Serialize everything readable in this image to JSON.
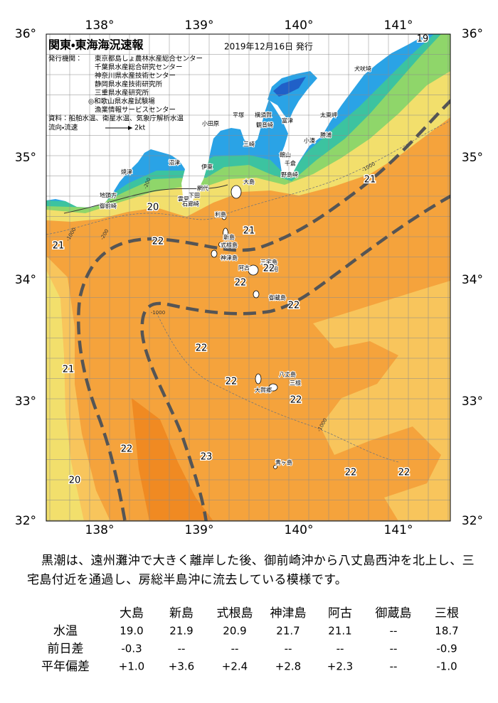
{
  "map": {
    "title": "関東・東海海況速報",
    "date": "2019年12月16日 発行",
    "issuer_label": "発行機関：",
    "issuers": [
      "東京都島しょ農林水産総合センター",
      "千葉県水産総合研究センター",
      "神奈川県水産技術センター",
      "静岡県水産技術研究所",
      "三重県水産研究所",
      "◎和歌山県水産試験場",
      "漁業情報サービスセンター"
    ],
    "source": "資料：船舶水温、衛星水温、気象庁解析水温",
    "legend": {
      "label": "流向・流速",
      "speed": "2kt"
    },
    "lon_labels": [
      "138°",
      "139°",
      "140°",
      "141°"
    ],
    "lat_labels": [
      "36°",
      "35°",
      "34°",
      "33°",
      "32°"
    ],
    "places": [
      "犬吠埼",
      "太東岬",
      "勝浦",
      "小湊",
      "平塚",
      "横須賀",
      "富津",
      "小田原",
      "観音崎",
      "三崎",
      "館山",
      "千倉",
      "野島崎",
      "伊東",
      "沼津",
      "焼津",
      "網代",
      "下田",
      "雲見",
      "石廊崎",
      "地頭方",
      "御前崎",
      "大島",
      "利島",
      "新島",
      "式根島",
      "神津島",
      "三宅島",
      "阿古",
      "坪田",
      "御蔵島",
      "八丈島",
      "三根",
      "大賀郷",
      "青ヶ島"
    ],
    "isotherms": [
      "19",
      "21",
      "20",
      "21",
      "22",
      "21",
      "22",
      "22",
      "22",
      "22",
      "21",
      "22",
      "22",
      "22",
      "23",
      "20",
      "22",
      "22"
    ],
    "depth_labels": [
      "-1000",
      "-1000",
      "-1000",
      "-1000",
      "-200",
      "-200"
    ]
  },
  "paragraph": "黒潮は、遠州灘沖で大きく離岸した後、御前崎沖から八丈島西沖を北上し、三宅島付近を通過し、房総半島沖に流去している模様です。",
  "table": {
    "columns": [
      "大島",
      "新島",
      "式根島",
      "神津島",
      "阿古",
      "御蔵島",
      "三根"
    ],
    "rows": [
      {
        "label": "水温",
        "values": [
          "19.0",
          "21.9",
          "20.9",
          "21.7",
          "21.1",
          "--",
          "18.7"
        ]
      },
      {
        "label": "前日差",
        "values": [
          "-0.3",
          "--",
          "--",
          "--",
          "--",
          "--",
          "-0.9"
        ]
      },
      {
        "label": "平年偏差",
        "values": [
          "+1.0",
          "+3.6",
          "+2.4",
          "+2.8",
          "+2.3",
          "--",
          "-1.0"
        ]
      }
    ]
  }
}
